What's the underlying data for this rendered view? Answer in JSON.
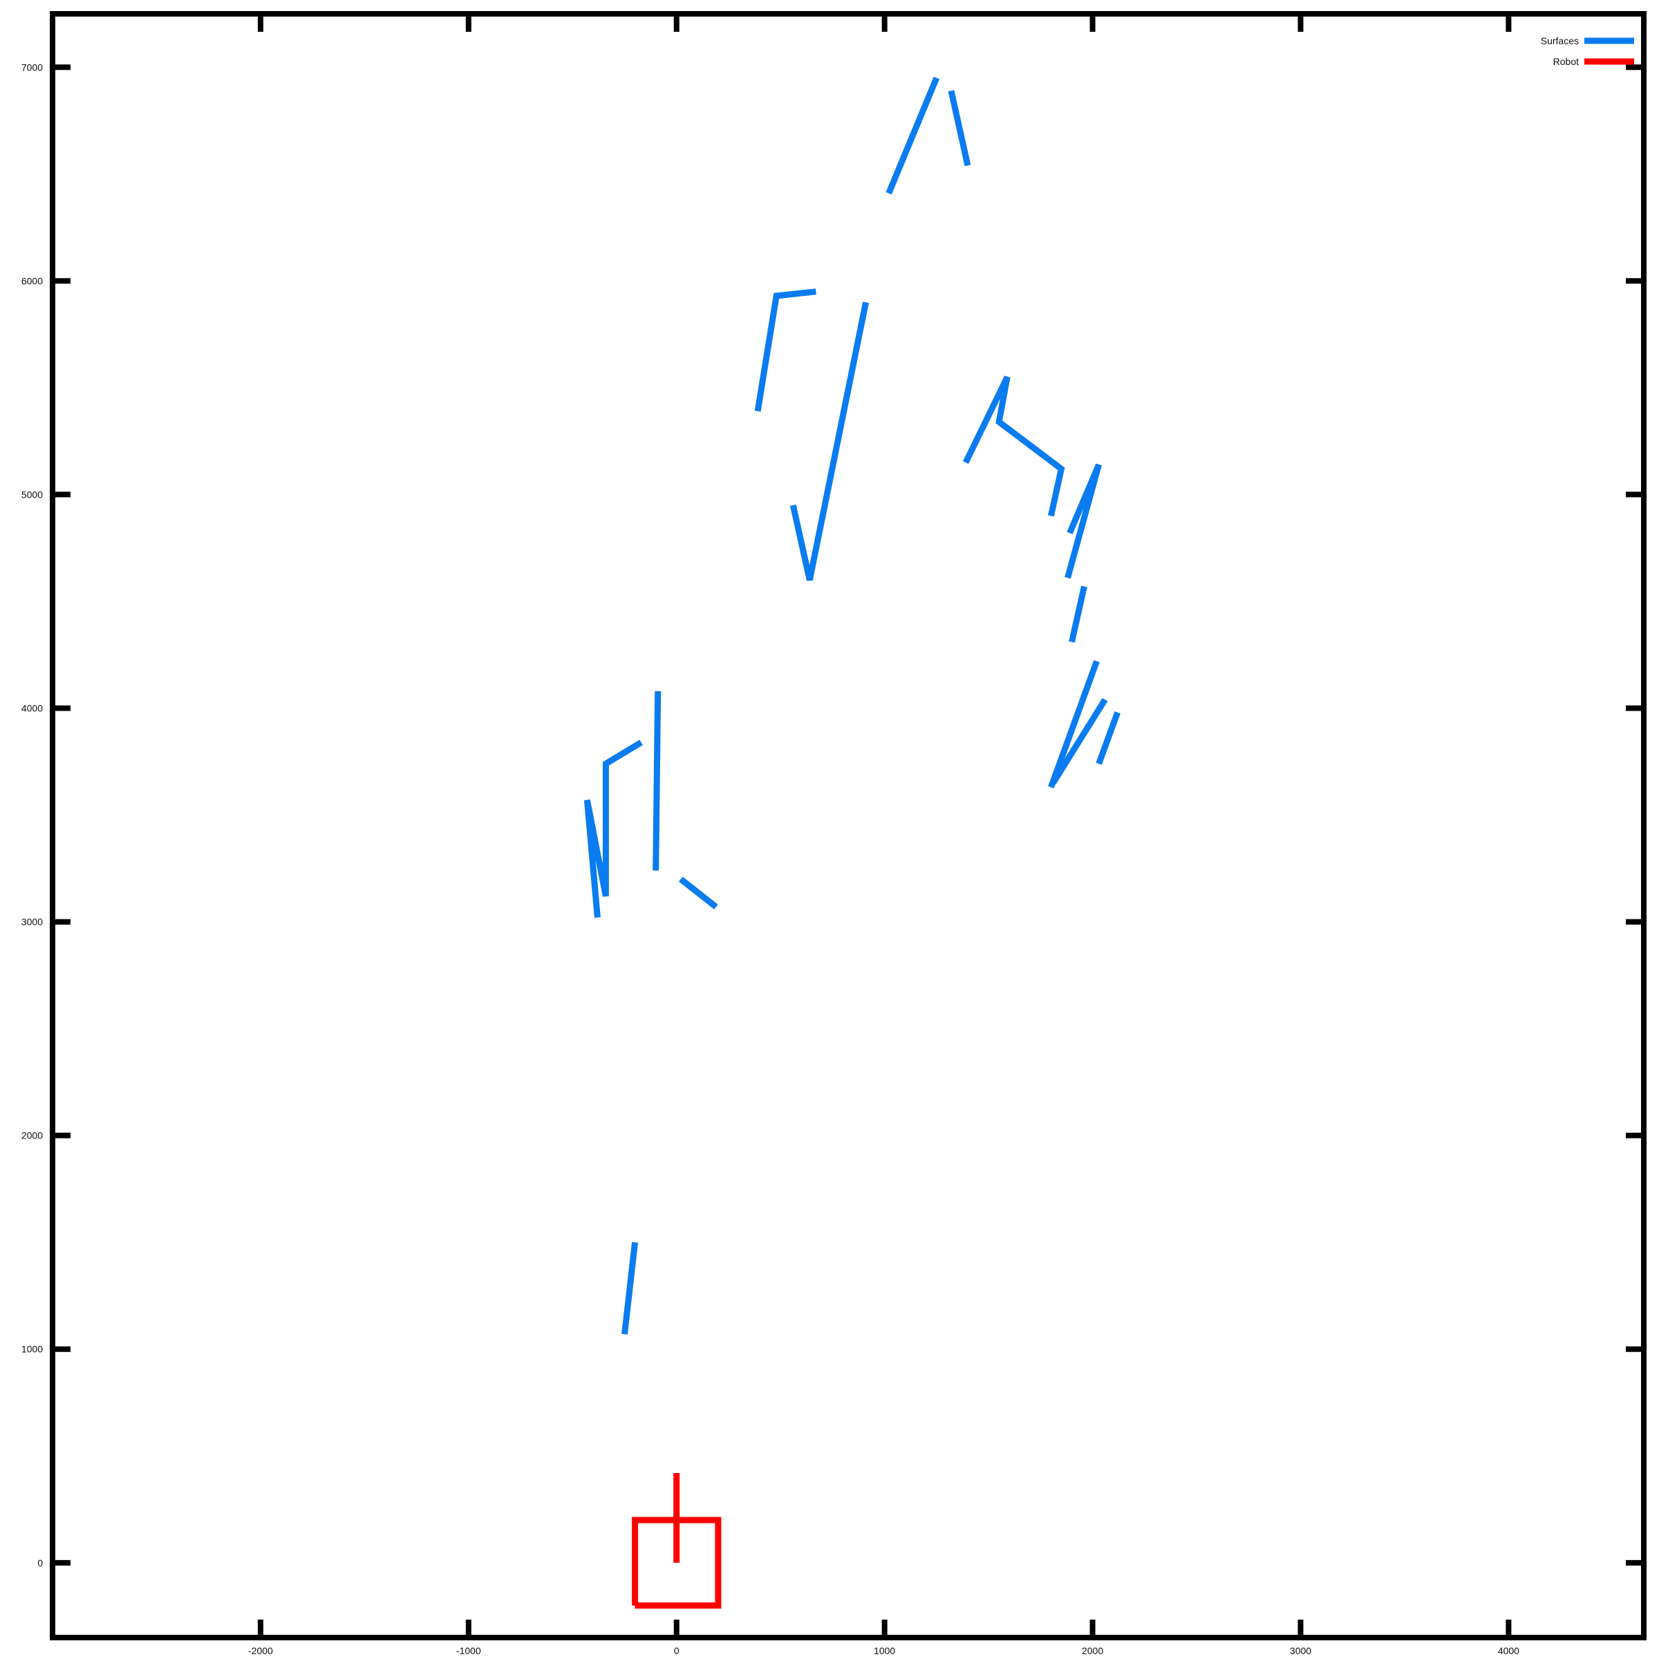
{
  "chart_data": {
    "type": "line",
    "title": "",
    "xlabel": "",
    "ylabel": "",
    "xlim": [
      -3000,
      4650
    ],
    "ylim": [
      -350,
      7250
    ],
    "x_ticks": [
      -2000,
      -1000,
      0,
      1000,
      2000,
      3000,
      4000
    ],
    "y_ticks": [
      0,
      1000,
      2000,
      3000,
      4000,
      5000,
      6000,
      7000
    ],
    "x_tick_labels": [
      "-2000",
      "-1000",
      "0",
      "1000",
      "2000",
      "3000",
      "4000"
    ],
    "y_tick_labels": [
      "0",
      "1000",
      "2000",
      "3000",
      "4000",
      "5000",
      "6000",
      "7000"
    ],
    "grid": false,
    "legend_position": "top-right",
    "series": [
      {
        "name": "Surfaces",
        "color": "#0a7cf0",
        "segments": [
          [
            [
              -250,
              1070
            ],
            [
              -200,
              1500
            ]
          ],
          [
            [
              -380,
              3020
            ],
            [
              -430,
              3570
            ],
            [
              -340,
              3120
            ],
            [
              -340,
              3740
            ],
            [
              -170,
              3840
            ]
          ],
          [
            [
              -100,
              3240
            ],
            [
              -90,
              4080
            ]
          ],
          [
            [
              20,
              3200
            ],
            [
              190,
              3070
            ]
          ],
          [
            [
              390,
              5390
            ],
            [
              480,
              5930
            ],
            [
              670,
              5950
            ]
          ],
          [
            [
              560,
              4950
            ],
            [
              640,
              4600
            ],
            [
              910,
              5900
            ]
          ],
          [
            [
              1020,
              6410
            ],
            [
              1250,
              6950
            ]
          ],
          [
            [
              1320,
              6890
            ],
            [
              1400,
              6540
            ]
          ],
          [
            [
              1390,
              5150
            ],
            [
              1590,
              5550
            ],
            [
              1550,
              5340
            ],
            [
              1850,
              5120
            ],
            [
              1800,
              4900
            ]
          ],
          [
            [
              1880,
              4610
            ],
            [
              2030,
              5140
            ],
            [
              1890,
              4820
            ]
          ],
          [
            [
              1900,
              4310
            ],
            [
              1960,
              4570
            ]
          ],
          [
            [
              1800,
              3630
            ],
            [
              2020,
              4220
            ]
          ],
          [
            [
              1810,
              3650
            ],
            [
              2060,
              4040
            ]
          ],
          [
            [
              2030,
              3740
            ],
            [
              2120,
              3980
            ]
          ]
        ]
      },
      {
        "name": "Robot",
        "color": "#ff0000",
        "segments": [
          [
            [
              -200,
              -200
            ],
            [
              200,
              -200
            ],
            [
              200,
              200
            ],
            [
              -200,
              200
            ],
            [
              -200,
              -200
            ]
          ],
          [
            [
              0,
              0
            ],
            [
              0,
              420
            ]
          ]
        ]
      }
    ]
  }
}
